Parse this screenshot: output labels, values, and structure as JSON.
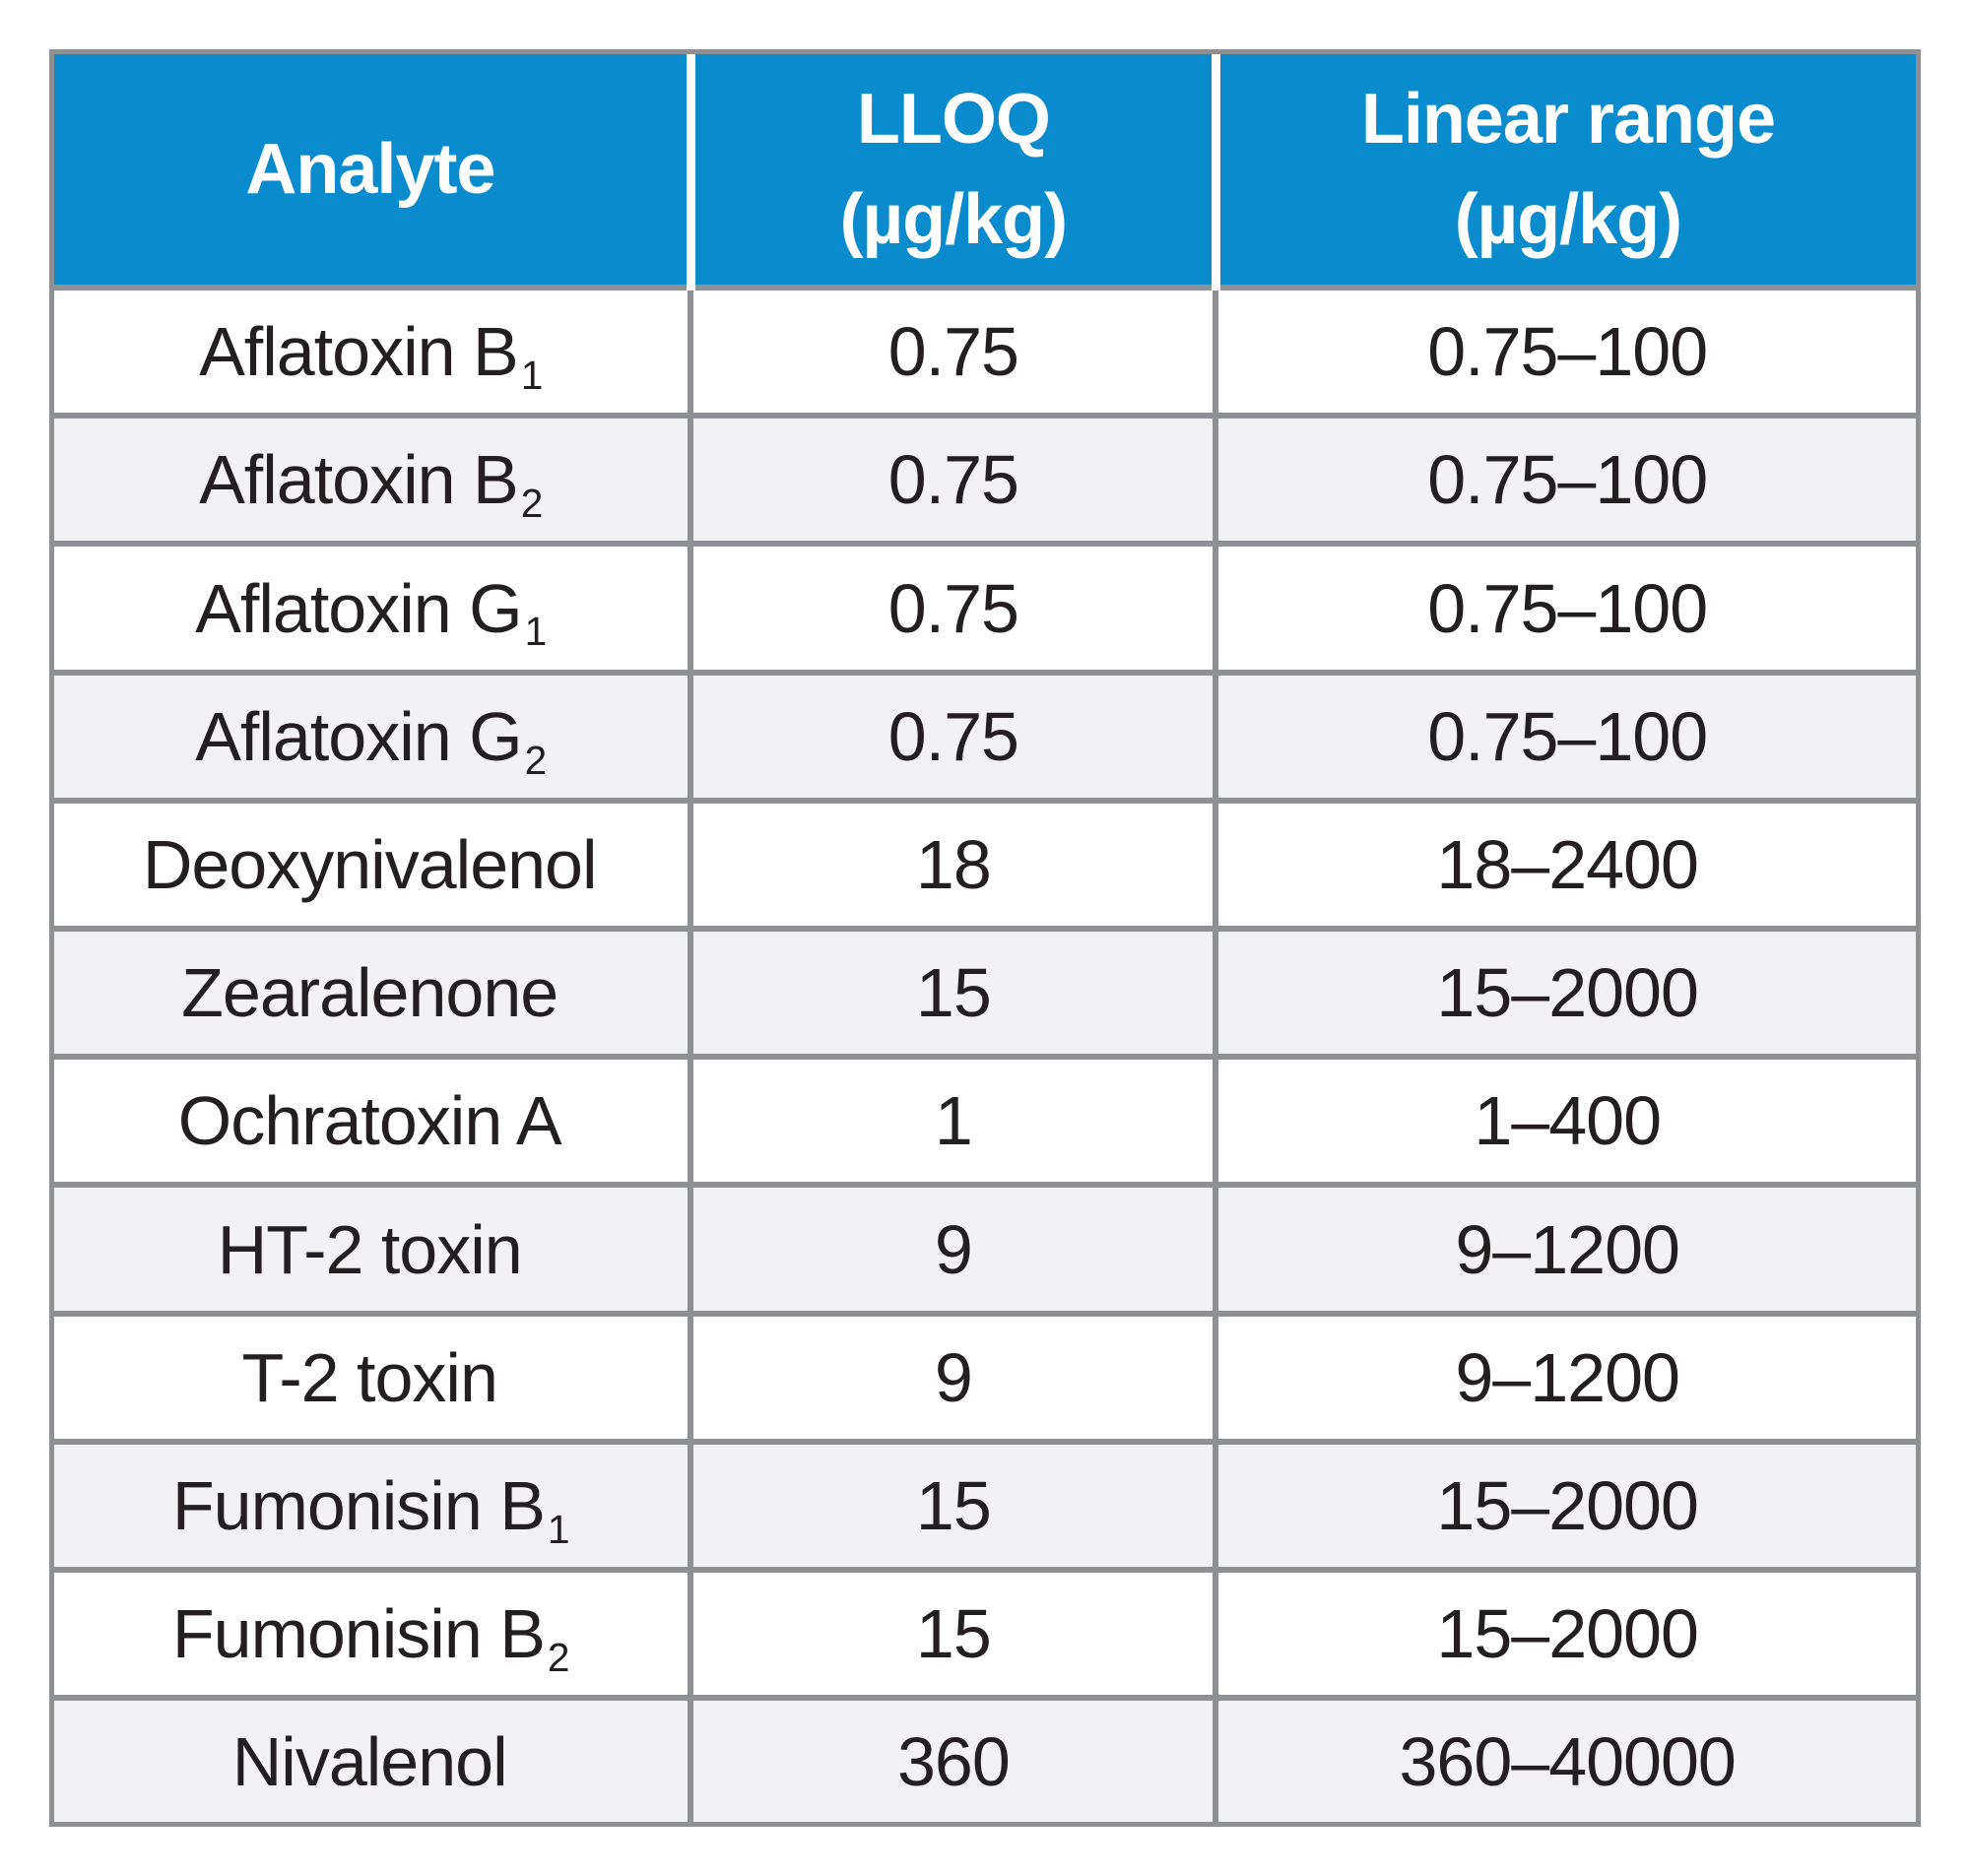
{
  "colors": {
    "header_bg": "#0a8bce",
    "header_text": "#ffffff",
    "body_text": "#231f20",
    "row_stripe": "#f2f2f4",
    "row_bg": "#ffffff",
    "border": "#8e9093"
  },
  "table": {
    "columns": [
      {
        "label": "Analyte",
        "unit": ""
      },
      {
        "label": "LLOQ",
        "unit": "(µg/kg)"
      },
      {
        "label": "Linear range",
        "unit": "(µg/kg)"
      }
    ],
    "rows": [
      {
        "analyte": "Aflatoxin B",
        "analyte_sub": "1",
        "lloq": "0.75",
        "range": "0.75–100"
      },
      {
        "analyte": "Aflatoxin B",
        "analyte_sub": "2",
        "lloq": "0.75",
        "range": "0.75–100"
      },
      {
        "analyte": "Aflatoxin G",
        "analyte_sub": "1",
        "lloq": "0.75",
        "range": "0.75–100"
      },
      {
        "analyte": "Aflatoxin G",
        "analyte_sub": "2",
        "lloq": "0.75",
        "range": "0.75–100"
      },
      {
        "analyte": "Deoxynivalenol",
        "analyte_sub": "",
        "lloq": "18",
        "range": "18–2400"
      },
      {
        "analyte": "Zearalenone",
        "analyte_sub": "",
        "lloq": "15",
        "range": "15–2000"
      },
      {
        "analyte": "Ochratoxin A",
        "analyte_sub": "",
        "lloq": "1",
        "range": "1–400"
      },
      {
        "analyte": "HT-2 toxin",
        "analyte_sub": "",
        "lloq": "9",
        "range": "9–1200"
      },
      {
        "analyte": "T-2 toxin",
        "analyte_sub": "",
        "lloq": "9",
        "range": "9–1200"
      },
      {
        "analyte": "Fumonisin B",
        "analyte_sub": "1",
        "lloq": "15",
        "range": "15–2000"
      },
      {
        "analyte": "Fumonisin B",
        "analyte_sub": "2",
        "lloq": "15",
        "range": "15–2000"
      },
      {
        "analyte": "Nivalenol",
        "analyte_sub": "",
        "lloq": "360",
        "range": "360–40000"
      }
    ]
  }
}
